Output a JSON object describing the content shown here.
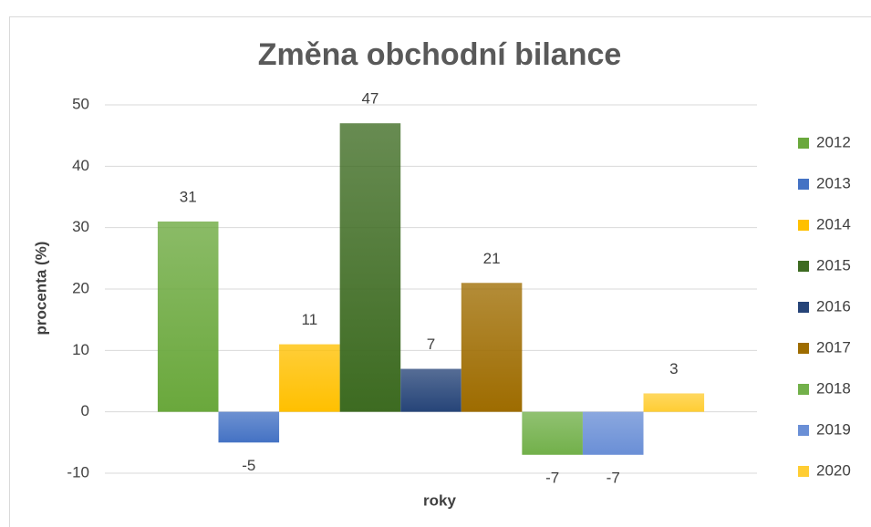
{
  "chart_data": {
    "type": "bar",
    "title": "Změna obchodní bilance",
    "y_label": "procenta (%)",
    "x_label": "roky",
    "categories": [
      null
    ],
    "series": [
      {
        "name": "2012",
        "color": "#6aa83c",
        "values": [
          31
        ]
      },
      {
        "name": "2013",
        "color": "#4472c4",
        "values": [
          -5
        ]
      },
      {
        "name": "2014",
        "color": "#ffc000",
        "values": [
          11
        ]
      },
      {
        "name": "2015",
        "color": "#3d6b21",
        "values": [
          47
        ]
      },
      {
        "name": "2016",
        "color": "#264478",
        "values": [
          7
        ]
      },
      {
        "name": "2017",
        "color": "#9e6c00",
        "values": [
          21
        ]
      },
      {
        "name": "2018",
        "color": "#72b04a",
        "values": [
          -7
        ]
      },
      {
        "name": "2019",
        "color": "#6a8fd6",
        "values": [
          -7
        ]
      },
      {
        "name": "2020",
        "color": "#ffcd33",
        "values": [
          3
        ]
      }
    ],
    "ylim": [
      -10,
      50
    ],
    "yticks": [
      -10,
      0,
      10,
      20,
      30,
      40,
      50
    ],
    "grid": true,
    "legend": "right",
    "data_labels": true
  }
}
